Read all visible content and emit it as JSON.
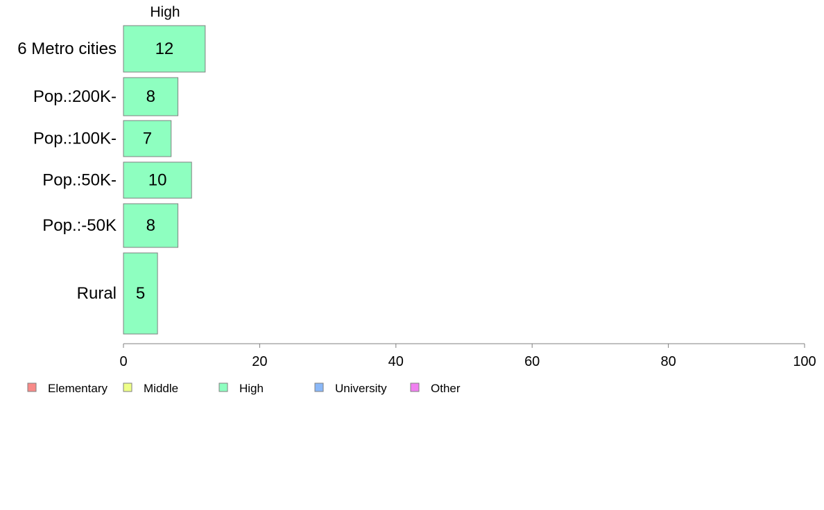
{
  "chart_data": {
    "type": "bar",
    "orientation": "horizontal",
    "title": "High",
    "categories": [
      "6 Metro cities",
      "Pop.:200K-",
      "Pop.:100K-",
      "Pop.:50K-",
      "Pop.:-50K",
      "Rural"
    ],
    "series": [
      {
        "name": "High",
        "values": [
          12,
          8,
          7,
          10,
          8,
          5
        ],
        "color": "#8effc0"
      }
    ],
    "xlim": [
      0,
      100
    ],
    "xticks": [
      0,
      20,
      40,
      60,
      80,
      100
    ],
    "grid": false,
    "legend": {
      "position": "bottom-left",
      "items": [
        {
          "label": "Elementary",
          "color": "#f88a88"
        },
        {
          "label": "Middle",
          "color": "#eeff88"
        },
        {
          "label": "High",
          "color": "#8effc0"
        },
        {
          "label": "University",
          "color": "#8ab8f8"
        },
        {
          "label": "Other",
          "color": "#f080f0"
        }
      ]
    },
    "colors": {
      "bar_stroke": "#7f7f7f",
      "axis": "#7f7f7f"
    }
  }
}
